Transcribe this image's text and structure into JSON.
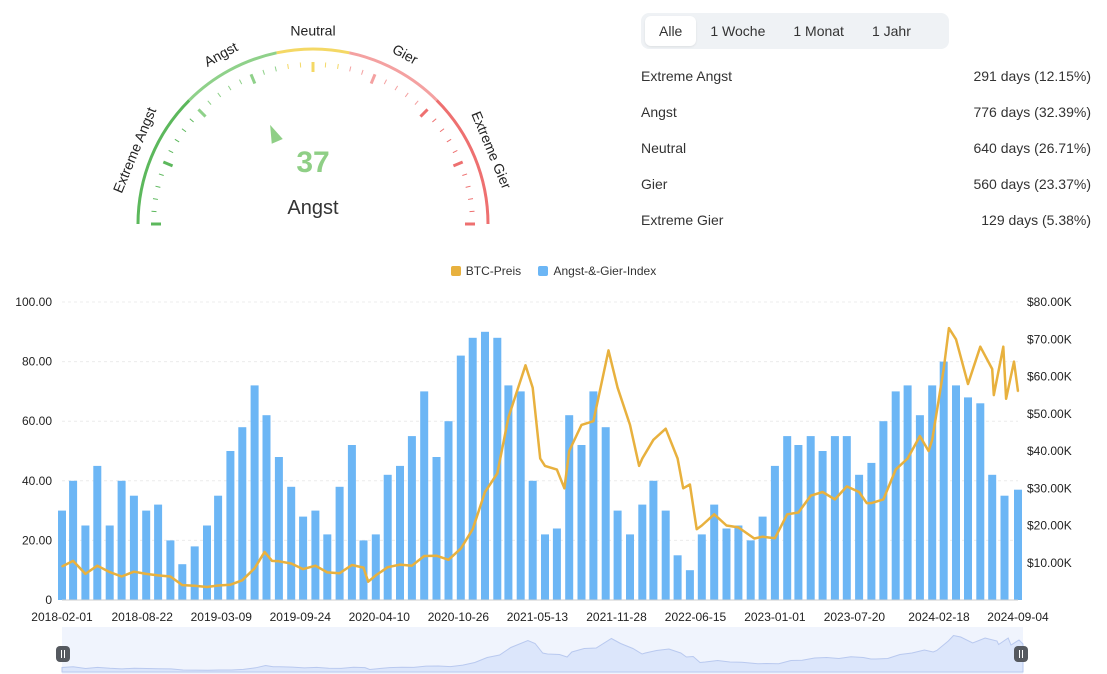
{
  "gauge": {
    "value": 37,
    "label": "Angst",
    "zones": [
      "Extreme Angst",
      "Angst",
      "Neutral",
      "Gier",
      "Extreme Gier"
    ],
    "colors": {
      "extreme_fear": "#5cb85c",
      "fear": "#8fd18a",
      "neutral": "#f4d865",
      "greed": "#f4a1a1",
      "extreme_greed": "#ee7070",
      "value_text": "#8fcf86",
      "needle": "#8fcf86"
    }
  },
  "tabs": [
    {
      "label": "Alle",
      "active": true
    },
    {
      "label": "1 Woche",
      "active": false
    },
    {
      "label": "1 Monat",
      "active": false
    },
    {
      "label": "1 Jahr",
      "active": false
    }
  ],
  "stats": [
    {
      "label": "Extreme Angst",
      "value": "291 days (12.15%)"
    },
    {
      "label": "Angst",
      "value": "776 days (32.39%)"
    },
    {
      "label": "Neutral",
      "value": "640 days (26.71%)"
    },
    {
      "label": "Gier",
      "value": "560 days (23.37%)"
    },
    {
      "label": "Extreme Gier",
      "value": "129 days (5.38%)"
    }
  ],
  "chart_data": {
    "type": "bar",
    "legend_position": "top-center",
    "grid": true,
    "x_start": "2018-02-01",
    "x_end": "2024-09-04",
    "x_tick_labels": [
      "2018-02-01",
      "2018-08-22",
      "2019-03-09",
      "2019-09-24",
      "2020-04-10",
      "2020-10-26",
      "2021-05-13",
      "2021-11-28",
      "2022-06-15",
      "2023-01-01",
      "2023-07-20",
      "2024-02-18",
      "2024-09-04"
    ],
    "y_left": {
      "range": [
        0,
        100
      ],
      "ticks": [
        "0",
        "20.00",
        "40.00",
        "60.00",
        "80.00",
        "100.00"
      ]
    },
    "y_right": {
      "range": [
        0,
        80000
      ],
      "ticks": [
        "$10.00K",
        "$20.00K",
        "$30.00K",
        "$40.00K",
        "$50.00K",
        "$60.00K",
        "$70.00K",
        "$80.00K"
      ]
    },
    "series": [
      {
        "name": "BTC-Preis",
        "type": "line",
        "axis": "right",
        "color": "#e8b13e",
        "points": [
          [
            "2018-02-01",
            9000
          ],
          [
            "2018-03-01",
            10500
          ],
          [
            "2018-04-01",
            7000
          ],
          [
            "2018-05-01",
            9200
          ],
          [
            "2018-06-01",
            7500
          ],
          [
            "2018-07-01",
            6300
          ],
          [
            "2018-08-01",
            7600
          ],
          [
            "2018-09-01",
            7000
          ],
          [
            "2018-10-01",
            6600
          ],
          [
            "2018-11-01",
            6300
          ],
          [
            "2018-12-01",
            4000
          ],
          [
            "2019-01-01",
            3800
          ],
          [
            "2019-02-01",
            3500
          ],
          [
            "2019-03-01",
            3900
          ],
          [
            "2019-04-01",
            4100
          ],
          [
            "2019-05-01",
            5300
          ],
          [
            "2019-06-01",
            8500
          ],
          [
            "2019-06-26",
            12900
          ],
          [
            "2019-07-15",
            10500
          ],
          [
            "2019-08-01",
            10400
          ],
          [
            "2019-09-01",
            9800
          ],
          [
            "2019-10-01",
            8300
          ],
          [
            "2019-11-01",
            9200
          ],
          [
            "2019-12-01",
            7400
          ],
          [
            "2020-01-01",
            7200
          ],
          [
            "2020-02-01",
            9400
          ],
          [
            "2020-03-01",
            8700
          ],
          [
            "2020-03-13",
            4900
          ],
          [
            "2020-04-01",
            6600
          ],
          [
            "2020-05-01",
            8800
          ],
          [
            "2020-06-01",
            9500
          ],
          [
            "2020-07-01",
            9200
          ],
          [
            "2020-08-01",
            11800
          ],
          [
            "2020-09-01",
            11900
          ],
          [
            "2020-10-01",
            10800
          ],
          [
            "2020-11-01",
            13800
          ],
          [
            "2020-12-01",
            19000
          ],
          [
            "2021-01-01",
            29000
          ],
          [
            "2021-02-01",
            34000
          ],
          [
            "2021-03-01",
            49000
          ],
          [
            "2021-04-13",
            63000
          ],
          [
            "2021-05-01",
            57000
          ],
          [
            "2021-05-20",
            38000
          ],
          [
            "2021-06-01",
            36000
          ],
          [
            "2021-07-01",
            35000
          ],
          [
            "2021-07-20",
            30000
          ],
          [
            "2021-08-01",
            40000
          ],
          [
            "2021-09-01",
            47000
          ],
          [
            "2021-10-01",
            48000
          ],
          [
            "2021-11-08",
            67000
          ],
          [
            "2021-12-01",
            57000
          ],
          [
            "2022-01-01",
            47000
          ],
          [
            "2022-01-24",
            36000
          ],
          [
            "2022-02-01",
            38000
          ],
          [
            "2022-03-01",
            43000
          ],
          [
            "2022-04-01",
            46000
          ],
          [
            "2022-05-01",
            38000
          ],
          [
            "2022-05-15",
            30000
          ],
          [
            "2022-06-01",
            31000
          ],
          [
            "2022-06-18",
            19000
          ],
          [
            "2022-07-01",
            20000
          ],
          [
            "2022-08-01",
            23000
          ],
          [
            "2022-09-01",
            20000
          ],
          [
            "2022-10-01",
            19500
          ],
          [
            "2022-11-10",
            16500
          ],
          [
            "2022-12-01",
            17000
          ],
          [
            "2023-01-01",
            16600
          ],
          [
            "2023-02-01",
            23000
          ],
          [
            "2023-03-01",
            23500
          ],
          [
            "2023-04-01",
            28000
          ],
          [
            "2023-05-01",
            29000
          ],
          [
            "2023-06-01",
            27000
          ],
          [
            "2023-07-01",
            30500
          ],
          [
            "2023-08-01",
            29000
          ],
          [
            "2023-08-20",
            26000
          ],
          [
            "2023-09-01",
            26000
          ],
          [
            "2023-10-01",
            27000
          ],
          [
            "2023-11-01",
            35000
          ],
          [
            "2023-12-01",
            38000
          ],
          [
            "2024-01-01",
            44000
          ],
          [
            "2024-01-23",
            40000
          ],
          [
            "2024-02-01",
            43000
          ],
          [
            "2024-03-01",
            62000
          ],
          [
            "2024-03-14",
            73000
          ],
          [
            "2024-04-01",
            70000
          ],
          [
            "2024-05-01",
            58000
          ],
          [
            "2024-06-01",
            68000
          ],
          [
            "2024-07-01",
            62000
          ],
          [
            "2024-07-05",
            55000
          ],
          [
            "2024-07-29",
            68000
          ],
          [
            "2024-08-05",
            54000
          ],
          [
            "2024-08-25",
            64000
          ],
          [
            "2024-09-04",
            56000
          ]
        ]
      },
      {
        "name": "Angst-&-Gier-Index",
        "type": "bar",
        "axis": "left",
        "color": "#6cb6f5",
        "points": [
          [
            "2018-02-01",
            30
          ],
          [
            "2018-03-01",
            40
          ],
          [
            "2018-04-01",
            25
          ],
          [
            "2018-05-01",
            45
          ],
          [
            "2018-06-01",
            25
          ],
          [
            "2018-07-01",
            40
          ],
          [
            "2018-08-01",
            35
          ],
          [
            "2018-09-01",
            30
          ],
          [
            "2018-10-01",
            32
          ],
          [
            "2018-11-01",
            20
          ],
          [
            "2018-12-01",
            12
          ],
          [
            "2019-01-01",
            18
          ],
          [
            "2019-02-01",
            25
          ],
          [
            "2019-03-01",
            35
          ],
          [
            "2019-04-01",
            50
          ],
          [
            "2019-05-01",
            58
          ],
          [
            "2019-06-01",
            72
          ],
          [
            "2019-07-01",
            62
          ],
          [
            "2019-08-01",
            48
          ],
          [
            "2019-09-01",
            38
          ],
          [
            "2019-10-01",
            28
          ],
          [
            "2019-11-01",
            30
          ],
          [
            "2019-12-01",
            22
          ],
          [
            "2020-01-01",
            38
          ],
          [
            "2020-02-01",
            52
          ],
          [
            "2020-03-01",
            20
          ],
          [
            "2020-04-01",
            22
          ],
          [
            "2020-05-01",
            42
          ],
          [
            "2020-06-01",
            45
          ],
          [
            "2020-07-01",
            55
          ],
          [
            "2020-08-01",
            70
          ],
          [
            "2020-09-01",
            48
          ],
          [
            "2020-10-01",
            60
          ],
          [
            "2020-11-01",
            82
          ],
          [
            "2020-12-01",
            88
          ],
          [
            "2021-01-01",
            90
          ],
          [
            "2021-02-01",
            88
          ],
          [
            "2021-03-01",
            72
          ],
          [
            "2021-04-01",
            70
          ],
          [
            "2021-05-01",
            40
          ],
          [
            "2021-06-01",
            22
          ],
          [
            "2021-07-01",
            24
          ],
          [
            "2021-08-01",
            62
          ],
          [
            "2021-09-01",
            52
          ],
          [
            "2021-10-01",
            70
          ],
          [
            "2021-11-01",
            58
          ],
          [
            "2021-12-01",
            30
          ],
          [
            "2022-01-01",
            22
          ],
          [
            "2022-02-01",
            32
          ],
          [
            "2022-03-01",
            40
          ],
          [
            "2022-04-01",
            30
          ],
          [
            "2022-05-01",
            15
          ],
          [
            "2022-06-01",
            10
          ],
          [
            "2022-07-01",
            22
          ],
          [
            "2022-08-01",
            32
          ],
          [
            "2022-09-01",
            24
          ],
          [
            "2022-10-01",
            25
          ],
          [
            "2022-11-01",
            20
          ],
          [
            "2022-12-01",
            28
          ],
          [
            "2023-01-01",
            45
          ],
          [
            "2023-02-01",
            55
          ],
          [
            "2023-03-01",
            52
          ],
          [
            "2023-04-01",
            55
          ],
          [
            "2023-05-01",
            50
          ],
          [
            "2023-06-01",
            55
          ],
          [
            "2023-07-01",
            55
          ],
          [
            "2023-08-01",
            42
          ],
          [
            "2023-09-01",
            46
          ],
          [
            "2023-10-01",
            60
          ],
          [
            "2023-11-01",
            70
          ],
          [
            "2023-12-01",
            72
          ],
          [
            "2024-01-01",
            62
          ],
          [
            "2024-02-01",
            72
          ],
          [
            "2024-03-01",
            80
          ],
          [
            "2024-04-01",
            72
          ],
          [
            "2024-05-01",
            68
          ],
          [
            "2024-06-01",
            66
          ],
          [
            "2024-07-01",
            42
          ],
          [
            "2024-08-01",
            35
          ],
          [
            "2024-09-04",
            37
          ]
        ]
      }
    ]
  }
}
